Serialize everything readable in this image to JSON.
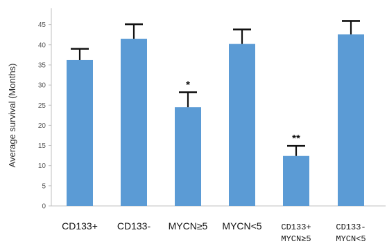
{
  "chart_data": {
    "type": "bar",
    "title": "",
    "xlabel": "",
    "ylabel": "Average survival (Months)",
    "ylim": [
      0,
      48
    ],
    "yticks": [
      0,
      5,
      10,
      15,
      20,
      25,
      30,
      35,
      40,
      45
    ],
    "grid": false,
    "bar_color": "#5b9bd5",
    "categories": [
      [
        "CD133+"
      ],
      [
        "CD133-"
      ],
      [
        "MYCN≥5"
      ],
      [
        "MYCN<5"
      ],
      [
        "CD133+",
        "MYCN≥5"
      ],
      [
        "CD133-",
        "MYCN<5"
      ]
    ],
    "values": [
      36.2,
      41.5,
      24.5,
      40.2,
      12.4,
      42.6
    ],
    "error_upper": [
      2.8,
      3.6,
      3.7,
      3.6,
      2.5,
      3.3
    ],
    "annotations": [
      "",
      "",
      "*",
      "",
      "**",
      ""
    ]
  }
}
